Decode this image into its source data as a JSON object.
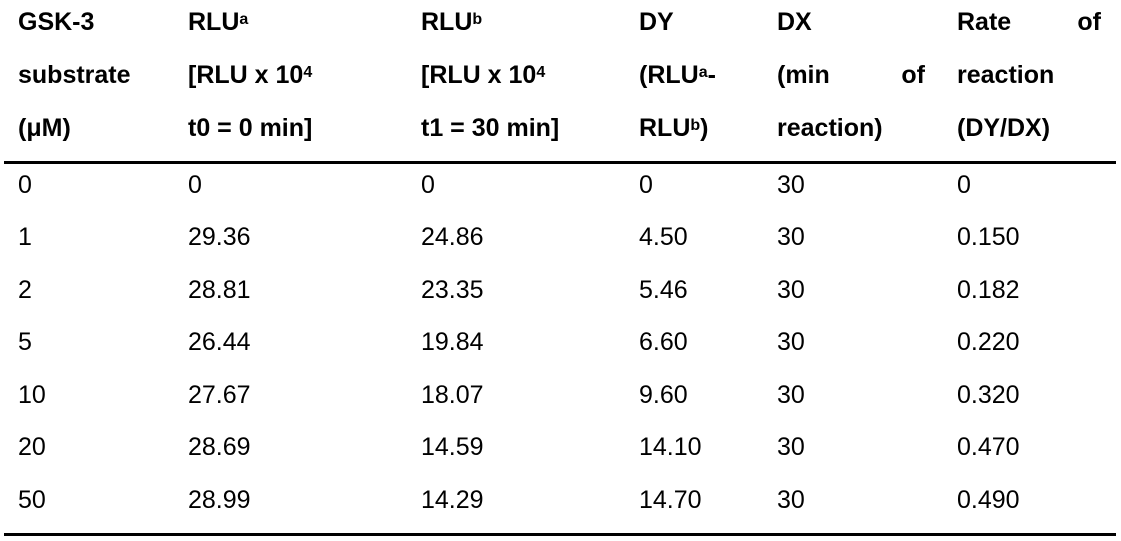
{
  "headers": [
    {
      "lines": [
        [
          "GSK-3"
        ],
        [
          "substrate"
        ],
        [
          "(μM)"
        ]
      ]
    },
    {
      "lines": [
        [
          {
            "t": "RLU"
          },
          {
            "sup": "a"
          }
        ],
        [
          {
            "t": "[RLU x 10"
          },
          {
            "sup": "4"
          }
        ],
        [
          {
            "t": "t0 = 0 min]"
          }
        ]
      ]
    },
    {
      "lines": [
        [
          {
            "t": "RLU"
          },
          {
            "sup": "b"
          }
        ],
        [
          {
            "t": "[RLU x 10"
          },
          {
            "sup": "4"
          }
        ],
        [
          {
            "t": "t1 = 30 min]"
          }
        ]
      ]
    },
    {
      "lines": [
        [
          {
            "t": "DY"
          }
        ],
        [
          {
            "t": "(RLU"
          },
          {
            "sup": "a"
          },
          {
            "t": "-"
          }
        ],
        [
          {
            "t": "RLU"
          },
          {
            "sup": "b"
          },
          {
            "t": ")"
          }
        ]
      ]
    },
    {
      "lines": [
        [
          "DX"
        ],
        [
          "(min",
          "of"
        ],
        [
          "reaction)"
        ]
      ]
    },
    {
      "lines": [
        [
          "Rate",
          "of"
        ],
        [
          "reaction"
        ],
        [
          "(DY/DX)"
        ]
      ]
    }
  ],
  "rows": [
    [
      "0",
      "0",
      "0",
      "0",
      "30",
      "0"
    ],
    [
      "1",
      "29.36",
      "24.86",
      "4.50",
      "30",
      "0.150"
    ],
    [
      "2",
      "28.81",
      "23.35",
      "5.46",
      "30",
      "0.182"
    ],
    [
      "5",
      "26.44",
      "19.84",
      "6.60",
      "30",
      "0.220"
    ],
    [
      "10",
      "27.67",
      "18.07",
      "9.60",
      "30",
      "0.320"
    ],
    [
      "20",
      "28.69",
      "14.59",
      "14.10",
      "30",
      "0.470"
    ],
    [
      "50",
      "28.99",
      "14.29",
      "14.70",
      "30",
      "0.490"
    ]
  ]
}
